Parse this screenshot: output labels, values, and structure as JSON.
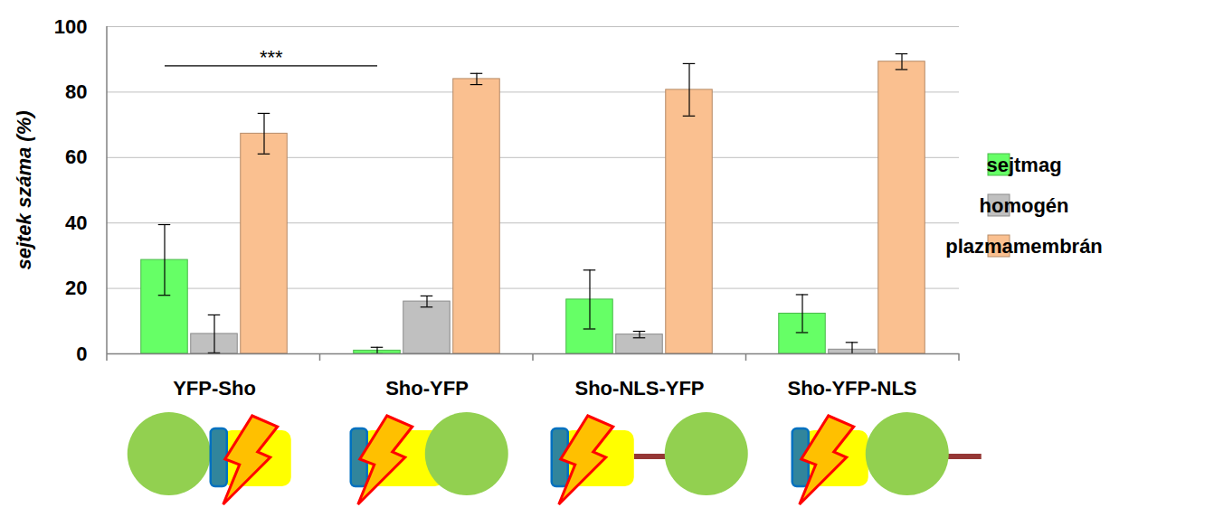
{
  "chart_data": {
    "type": "bar",
    "y_label": "sejtek száma (%)",
    "categories": [
      "YFP-Sho",
      "Sho-YFP",
      "Sho-NLS-YFP",
      "Sho-YFP-NLS"
    ],
    "series": [
      {
        "name": "sejtmag",
        "color": "#66ff66",
        "values": [
          28.7,
          1.0,
          16.6,
          12.3
        ],
        "errors": [
          10.8,
          1.0,
          9.0,
          5.8
        ]
      },
      {
        "name": "homogén",
        "color": "#c0c0c0",
        "values": [
          6.1,
          16.0,
          5.9,
          1.3
        ],
        "errors": [
          5.8,
          1.7,
          1.0,
          2.2
        ]
      },
      {
        "name": "plazmamembrán",
        "color": "#fac090",
        "values": [
          67.3,
          84.0,
          80.7,
          89.3
        ],
        "errors": [
          6.2,
          1.7,
          8.0,
          2.4
        ]
      }
    ],
    "ylim": [
      0,
      100
    ],
    "yticks": [
      0,
      20,
      40,
      60,
      80,
      100
    ],
    "grid": true,
    "legend": "right",
    "annotations": [
      {
        "text": "***",
        "from": "YFP-Sho",
        "to": "Sho-YFP",
        "series": "sejtmag",
        "y": 88
      }
    ]
  }
}
